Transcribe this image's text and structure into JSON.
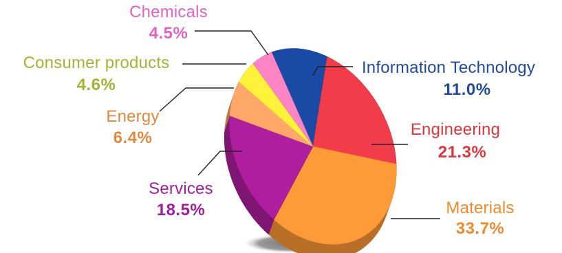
{
  "chart_data": {
    "type": "pie",
    "title": "",
    "slices": [
      {
        "name": "Information Technology",
        "label": "Information Technology",
        "value": 11.0,
        "value_label": "11.0%",
        "color": "#1a4aa6",
        "text_color": "#1f4b9a"
      },
      {
        "name": "Engineering",
        "label": "Engineering",
        "value": 21.3,
        "value_label": "21.3%",
        "color": "#f23c4a",
        "text_color": "#d8383d"
      },
      {
        "name": "Materials",
        "label": "Materials",
        "value": 33.7,
        "value_label": "33.7%",
        "color": "#ff9a38",
        "text_color": "#f08a2c"
      },
      {
        "name": "Services",
        "label": "Services",
        "value": 18.5,
        "value_label": "18.5%",
        "color": "#b01ea0",
        "text_color": "#a21d9a"
      },
      {
        "name": "Energy",
        "label": "Energy",
        "value": 6.4,
        "value_label": "6.4%",
        "color": "#ffa86a",
        "text_color": "#e08840"
      },
      {
        "name": "Consumer products",
        "label": "Consumer products",
        "value": 4.6,
        "value_label": "4.6%",
        "color": "#fff23a",
        "text_color": "#a4b235"
      },
      {
        "name": "Chemicals",
        "label": "Chemicals",
        "value": 4.5,
        "value_label": "4.5%",
        "color": "#ff84c4",
        "text_color": "#e063c4"
      }
    ],
    "legend": "none",
    "style": "3d-tilted"
  }
}
